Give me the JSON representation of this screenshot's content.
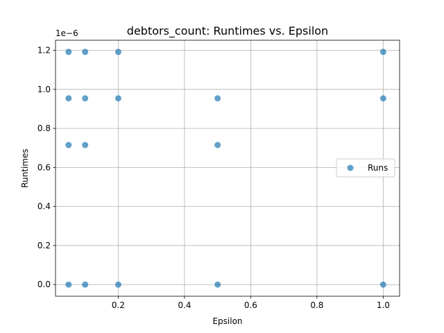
{
  "chart_data": {
    "type": "scatter",
    "title": "debtors_count: Runtimes vs. Epsilon",
    "xlabel": "Epsilon",
    "ylabel": "Runtimes",
    "y_offset_label": "1e−6",
    "xlim": [
      0.0105,
      1.0495
    ],
    "ylim": [
      -0.0596,
      1.2516
    ],
    "x_ticks": [
      0.2,
      0.4,
      0.6,
      0.8,
      1.0
    ],
    "x_tick_labels": [
      "0.2",
      "0.4",
      "0.6",
      "0.8",
      "1.0"
    ],
    "y_ticks": [
      0.0,
      0.2,
      0.4,
      0.6,
      0.8,
      1.0,
      1.2
    ],
    "y_tick_labels": [
      "0.0",
      "0.2",
      "0.4",
      "0.6",
      "0.8",
      "1.0",
      "1.2"
    ],
    "grid": true,
    "legend_position": "center-right",
    "series": [
      {
        "name": "Runs",
        "color": "#1f77b4",
        "points": [
          {
            "x": 0.05,
            "y": 1.192
          },
          {
            "x": 0.05,
            "y": 0.954
          },
          {
            "x": 0.05,
            "y": 0.715
          },
          {
            "x": 0.05,
            "y": 0.0
          },
          {
            "x": 0.1,
            "y": 1.192
          },
          {
            "x": 0.1,
            "y": 0.954
          },
          {
            "x": 0.1,
            "y": 0.715
          },
          {
            "x": 0.1,
            "y": 0.0
          },
          {
            "x": 0.2,
            "y": 1.192
          },
          {
            "x": 0.2,
            "y": 0.954
          },
          {
            "x": 0.2,
            "y": 0.0
          },
          {
            "x": 0.5,
            "y": 0.954
          },
          {
            "x": 0.5,
            "y": 0.715
          },
          {
            "x": 0.5,
            "y": 0.0
          },
          {
            "x": 1.0,
            "y": 1.192
          },
          {
            "x": 1.0,
            "y": 0.954
          },
          {
            "x": 1.0,
            "y": 0.0
          }
        ]
      }
    ]
  }
}
